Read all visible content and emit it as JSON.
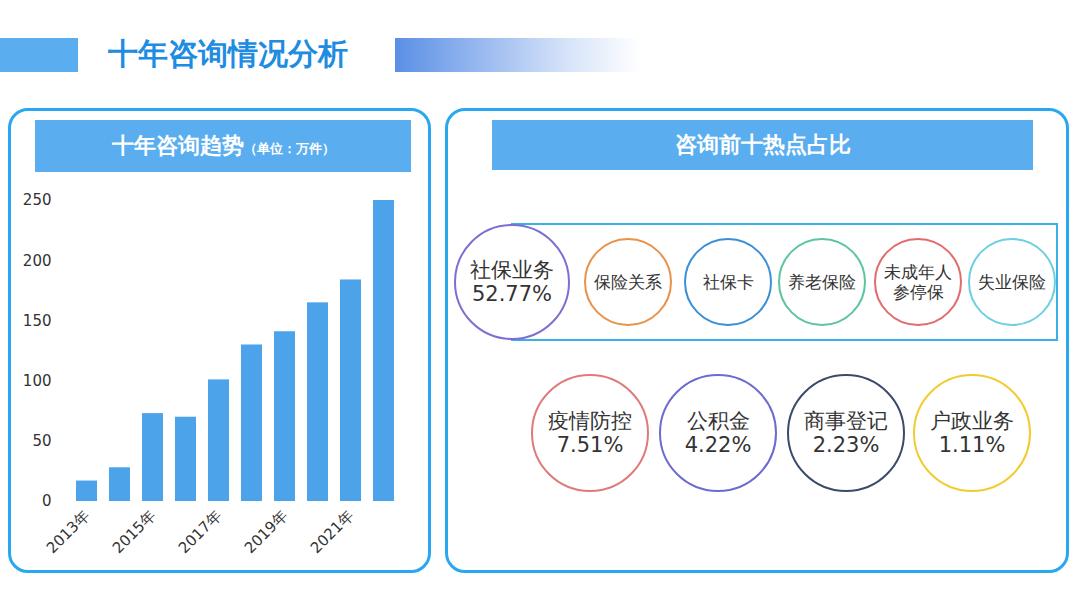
{
  "header": {
    "title": "十年咨询情况分析"
  },
  "chart_data": {
    "type": "bar",
    "title": "十年咨询趋势",
    "subtitle": "（单位：万件）",
    "categories": [
      "2013年",
      null,
      "2015年",
      null,
      "2017年",
      null,
      "2019年",
      null,
      "2021年",
      null
    ],
    "values": [
      17,
      28,
      73,
      70,
      101,
      130,
      141,
      165,
      184,
      250
    ],
    "color": "#4da3ea",
    "ylim": [
      0,
      250
    ],
    "yticks": [
      0,
      50,
      100,
      150,
      200,
      250
    ],
    "grid": false
  },
  "hotspots": {
    "title": "咨询前十热点占比",
    "main": {
      "label": "社保业务",
      "share": "52.77%",
      "color": "#7b6fd3"
    },
    "sub_items": [
      {
        "label": "保险关系",
        "color": "#e8924a"
      },
      {
        "label": "社保卡",
        "color": "#3a8fd6"
      },
      {
        "label": "养老保险",
        "color": "#5ec4a0"
      },
      {
        "label": "未成年人参停保",
        "color": "#e26b6b"
      },
      {
        "label": "失业保险",
        "color": "#6dd0e0"
      }
    ],
    "others": [
      {
        "label": "疫情防控",
        "share": "7.51%",
        "color": "#e07a7a"
      },
      {
        "label": "公积金",
        "share": "4.22%",
        "color": "#6b6bd0"
      },
      {
        "label": "商事登记",
        "share": "2.23%",
        "color": "#3a4a6a"
      },
      {
        "label": "户政业务",
        "share": "1.11%",
        "color": "#f0cc30"
      }
    ]
  }
}
